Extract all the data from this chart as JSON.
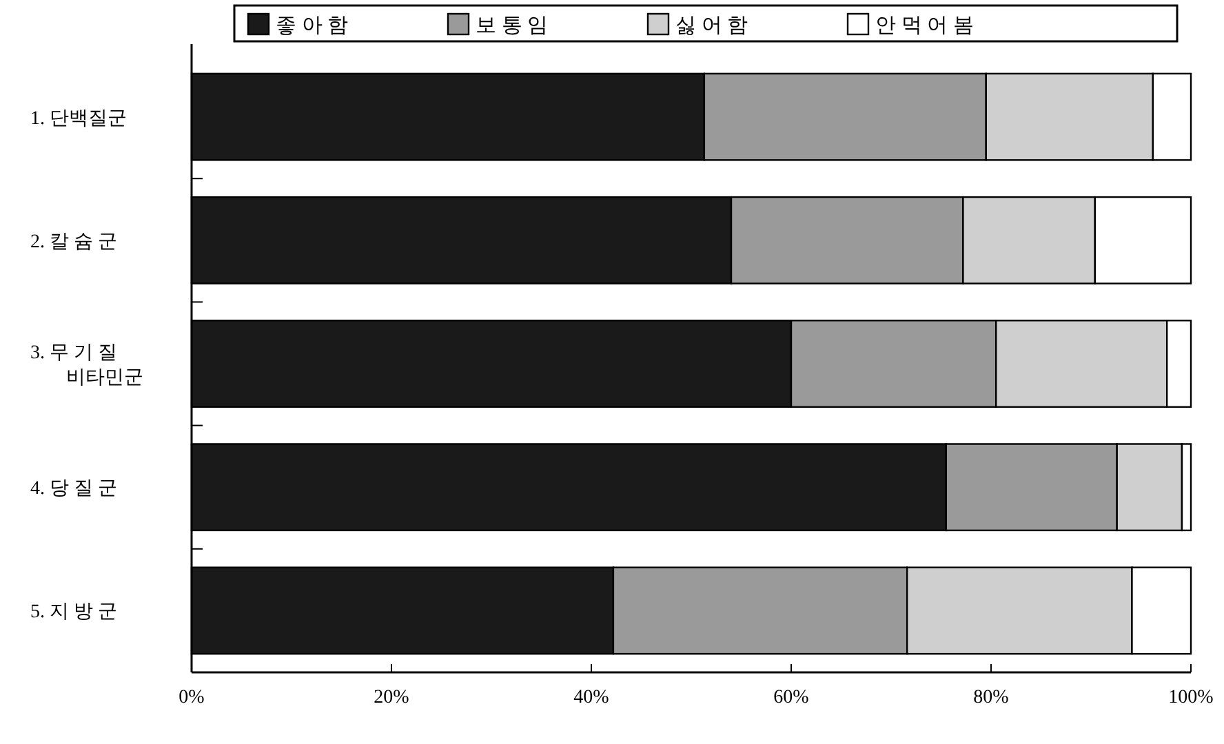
{
  "chart_data": {
    "type": "bar",
    "orientation": "horizontal",
    "stacked": true,
    "categories": [
      "1. 단백질군",
      "2. 칼 슘 군",
      "3. 무 기 질\n비타민군",
      "4. 당 질 군",
      "5. 지 방 군"
    ],
    "series": [
      {
        "name": "좋 아 함",
        "color": "#1a1a1a",
        "values": [
          51.3,
          54,
          60,
          75.5,
          42.2
        ]
      },
      {
        "name": "보 통 임",
        "color": "#9a9a9a",
        "values": [
          28.2,
          23.2,
          20.5,
          17.1,
          29.4
        ]
      },
      {
        "name": "싫 어 함",
        "color": "#cfcfcf",
        "values": [
          16.7,
          13.2,
          17.1,
          6.5,
          22.5
        ]
      },
      {
        "name": "안 먹 어 봄",
        "color": "#ffffff",
        "values": [
          3.8,
          9.6,
          2.4,
          0.9,
          5.9
        ]
      }
    ],
    "xlim": [
      0,
      100
    ],
    "xticks": [
      {
        "value": 0,
        "label": "0%"
      },
      {
        "value": 20,
        "label": "20%"
      },
      {
        "value": 40,
        "label": "40%"
      },
      {
        "value": 60,
        "label": "60%"
      },
      {
        "value": 80,
        "label": "80%"
      },
      {
        "value": 100,
        "label": "100%"
      }
    ],
    "grid": false,
    "legend": "top"
  }
}
